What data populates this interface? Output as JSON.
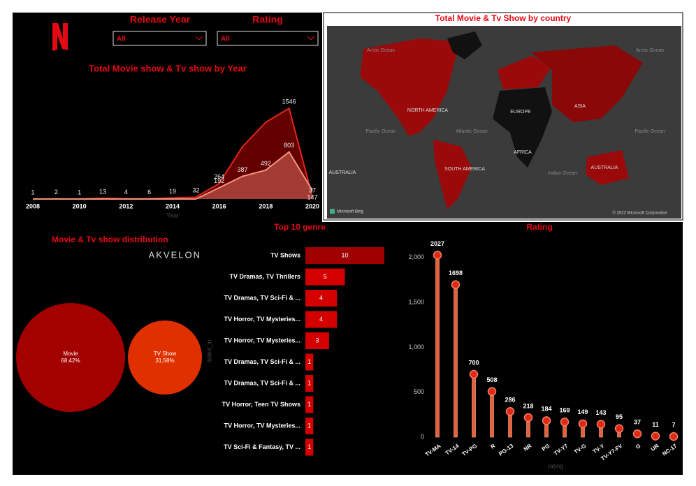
{
  "header": {
    "release_year_label": "Release Year",
    "release_year_value": "All",
    "rating_label": "Rating",
    "rating_value": "All"
  },
  "map": {
    "title": "Total Movie & Tv Show by country",
    "labels": [
      "Arctic Ocean",
      "Arctic Ocean",
      "NORTH AMERICA",
      "EUROPE",
      "ASIA",
      "AFRICA",
      "SOUTH AMERICA",
      "AUSTRALIA",
      "AUSTRALIA",
      "Atlantic Ocean",
      "Pacific Ocean",
      "Pacific Ocean",
      "Indian Ocean"
    ],
    "attribution": "Microsoft Bing",
    "copyright": "© 2022 Microsoft Corporation"
  },
  "logo": "AKVELON",
  "chart_data": [
    {
      "type": "area",
      "title": "Total Movie show & Tv show by Year",
      "x_label": "Year",
      "x": [
        2008,
        2009,
        2010,
        2011,
        2012,
        2013,
        2014,
        2015,
        2016,
        2017,
        2018,
        2019,
        2020
      ],
      "xlim": [
        2008,
        2020
      ],
      "xticks": [
        2008,
        2010,
        2012,
        2014,
        2016,
        2018,
        2020
      ],
      "ylim": [
        0,
        2000
      ],
      "series": [
        {
          "color": "#e3261c",
          "fill": "#6e0000",
          "values": [
            1,
            2,
            1,
            13,
            4,
            6,
            19,
            32,
            264,
            892,
            1308,
            1546,
            37
          ],
          "value_labels": [
            "1",
            "2",
            "1",
            "13",
            "4",
            "6",
            "19",
            "32",
            "264",
            null,
            null,
            "1546",
            "37"
          ]
        },
        {
          "color": "#f4937f",
          "fill": "#a8413a",
          "values": [
            0,
            0,
            0,
            0,
            0,
            0,
            0,
            0,
            192,
            387,
            492,
            803,
            147
          ],
          "value_labels": [
            null,
            null,
            null,
            null,
            null,
            null,
            null,
            null,
            "192",
            "387",
            "492",
            "803",
            "147"
          ]
        }
      ]
    },
    {
      "type": "bubble",
      "title": "Movie & Tv show distribution",
      "categories": [
        "Movie",
        "TV Show"
      ],
      "values": [
        68.42,
        31.58
      ],
      "value_labels": [
        "68.42%",
        "31.58%"
      ],
      "colors": [
        "#a30000",
        "#e03000"
      ]
    },
    {
      "type": "barh",
      "title": "Top 10 genre",
      "y_label": "listed_in",
      "categories": [
        "TV Shows",
        "TV Dramas, TV Thrillers",
        "TV Dramas, TV Sci-Fi & ...",
        "TV Horror, TV Mysteries...",
        "TV Horror, TV Mysteries...",
        "TV Dramas, TV Sci-Fi & ...",
        "TV Dramas, TV Sci-Fi & ...",
        "TV Horror, Teen TV Shows",
        "TV Horror, TV Mysteries...",
        "TV Sci-Fi & Fantasy, TV ..."
      ],
      "values": [
        10,
        5,
        4,
        4,
        3,
        1,
        1,
        1,
        1,
        1
      ],
      "xlim": [
        0,
        10
      ],
      "colors": [
        "#a00000",
        "#d40000",
        "#d40000",
        "#d40000",
        "#d40000",
        "#d40000",
        "#d40000",
        "#d40000",
        "#d40000",
        "#d40000"
      ]
    },
    {
      "type": "lollipop",
      "title": "Rating",
      "x_label": "rating",
      "categories": [
        "TV-MA",
        "TV-14",
        "TV-PG",
        "R",
        "PG-13",
        "NR",
        "PG",
        "TV-Y7",
        "TV-G",
        "TV-Y",
        "TV-Y7-FV",
        "G",
        "UR",
        "NC-17"
      ],
      "values": [
        2027,
        1698,
        700,
        508,
        286,
        218,
        184,
        169,
        149,
        143,
        95,
        37,
        11,
        7
      ],
      "ylim": [
        0,
        2100
      ],
      "yticks": [
        0,
        500,
        {
          "value": 1000,
          "label": "1,000"
        },
        {
          "value": 1500,
          "label": "1,500"
        },
        {
          "value": 2000,
          "label": "2,000"
        }
      ],
      "color": "#e02a10",
      "stick_color": "#e8603a"
    }
  ]
}
